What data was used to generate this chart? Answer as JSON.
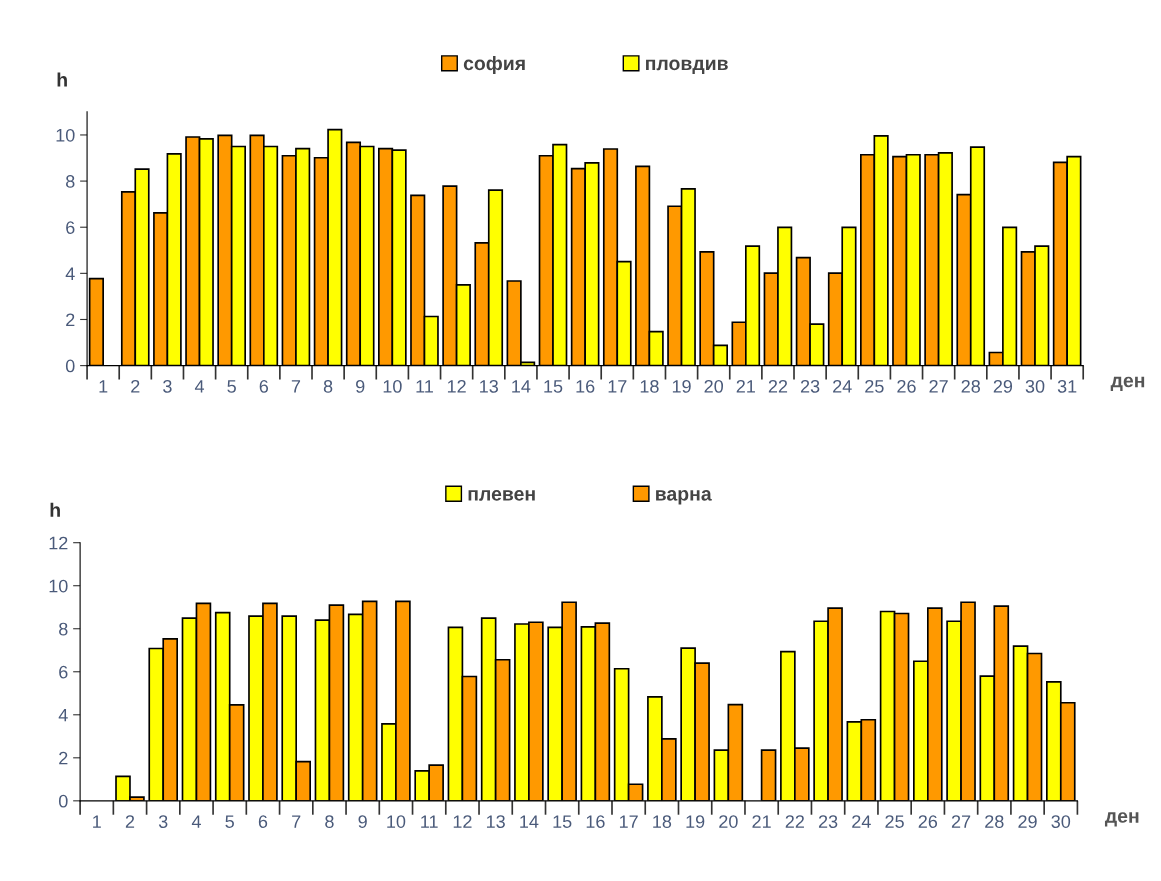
{
  "chart_data": [
    {
      "type": "bar",
      "ylabel": "h",
      "xlabel": "ден",
      "legend": "top",
      "categories": [
        "1",
        "2",
        "3",
        "4",
        "5",
        "6",
        "7",
        "8",
        "9",
        "10",
        "11",
        "12",
        "13",
        "14",
        "15",
        "16",
        "17",
        "18",
        "19",
        "20",
        "21",
        "22",
        "23",
        "24",
        "25",
        "26",
        "27",
        "28",
        "29",
        "30",
        "31"
      ],
      "series": [
        {
          "name": "софия",
          "color": "#ff9900",
          "values": [
            3.77,
            7.53,
            6.62,
            9.91,
            9.98,
            9.98,
            9.1,
            9.01,
            9.68,
            9.41,
            7.38,
            7.78,
            5.32,
            3.67,
            9.1,
            8.54,
            9.39,
            8.64,
            6.91,
            4.93,
            1.88,
            4.01,
            4.68,
            4.01,
            9.14,
            9.06,
            9.14,
            7.41,
            0.57,
            4.93,
            8.81
          ]
        },
        {
          "name": "пловдив",
          "color": "#ffff00",
          "values": [
            null,
            8.52,
            9.18,
            9.83,
            9.5,
            9.5,
            9.41,
            10.23,
            9.5,
            9.34,
            2.13,
            3.5,
            7.61,
            0.14,
            9.58,
            8.79,
            4.51,
            1.47,
            7.66,
            0.88,
            5.18,
            5.99,
            1.8,
            5.99,
            9.96,
            9.14,
            9.22,
            9.47,
            5.99,
            5.18,
            9.06
          ]
        }
      ],
      "ylim": [
        0,
        11
      ],
      "yticks": [
        0,
        2,
        4,
        6,
        8,
        10
      ],
      "grid": false
    },
    {
      "type": "bar",
      "ylabel": "h",
      "xlabel": "ден",
      "legend": "top",
      "categories": [
        "1",
        "2",
        "3",
        "4",
        "5",
        "6",
        "7",
        "8",
        "9",
        "10",
        "11",
        "12",
        "13",
        "14",
        "15",
        "16",
        "17",
        "18",
        "19",
        "20",
        "21",
        "22",
        "23",
        "24",
        "25",
        "26",
        "27",
        "28",
        "29",
        "30"
      ],
      "series": [
        {
          "name": "плевен",
          "color": "#ffff00",
          "values": [
            null,
            1.14,
            7.08,
            8.49,
            8.75,
            8.59,
            8.59,
            8.4,
            8.67,
            3.58,
            1.39,
            8.06,
            8.49,
            8.22,
            8.06,
            8.09,
            6.14,
            4.83,
            7.1,
            2.36,
            null,
            6.94,
            8.35,
            3.67,
            8.8,
            6.49,
            8.35,
            5.8,
            7.19,
            5.53
          ]
        },
        {
          "name": "варна",
          "color": "#ff9900",
          "values": [
            null,
            0.17,
            7.53,
            9.18,
            4.46,
            9.18,
            1.82,
            9.1,
            9.27,
            9.27,
            1.66,
            5.78,
            6.56,
            8.3,
            9.23,
            8.26,
            0.77,
            2.88,
            6.4,
            4.47,
            2.36,
            2.45,
            8.96,
            3.77,
            8.71,
            8.96,
            9.23,
            9.05,
            6.85,
            4.56
          ]
        }
      ],
      "ylim": [
        0,
        12
      ],
      "yticks": [
        0,
        2,
        4,
        6,
        8,
        10,
        12
      ],
      "grid": false
    }
  ]
}
